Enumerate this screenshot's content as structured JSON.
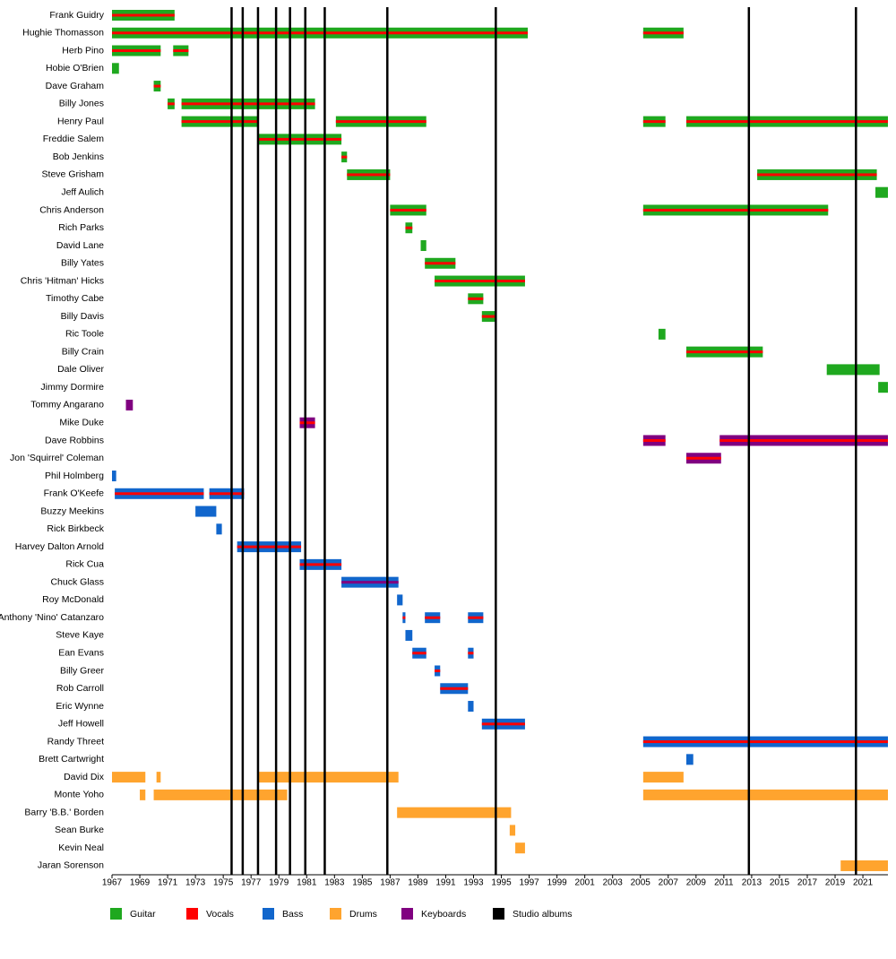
{
  "chart_data": {
    "type": "timeline",
    "xlim": [
      1967,
      2022.8
    ],
    "xticks": [
      1967,
      1969,
      1971,
      1973,
      1975,
      1977,
      1979,
      1981,
      1983,
      1985,
      1987,
      1989,
      1991,
      1993,
      1995,
      1997,
      1999,
      2001,
      2003,
      2005,
      2007,
      2009,
      2011,
      2013,
      2015,
      2017,
      2019,
      2021
    ],
    "series": [
      {
        "name": "Guitar",
        "color": "#1fa81f"
      },
      {
        "name": "Vocals",
        "color": "#ff0000"
      },
      {
        "name": "Bass",
        "color": "#1166cc"
      },
      {
        "name": "Drums",
        "color": "#ffa42e"
      },
      {
        "name": "Keyboards",
        "color": "#800080"
      },
      {
        "name": "Studio albums",
        "color": "#000000",
        "values": [
          1975.6,
          1976.4,
          1977.5,
          1978.8,
          1979.8,
          1980.9,
          1982.3,
          1986.8,
          1994.6,
          2012.8,
          2020.5
        ]
      }
    ],
    "members": [
      {
        "name": "Frank Guidry",
        "roles": [
          "Guitar",
          "Vocals"
        ],
        "periods": [
          {
            "start": 1967,
            "end": 1971.5
          }
        ]
      },
      {
        "name": "Hughie Thomasson",
        "roles": [
          "Guitar",
          "Vocals"
        ],
        "periods": [
          {
            "start": 1967,
            "end": 1996.9
          },
          {
            "start": 2005.2,
            "end": 2008.1
          }
        ]
      },
      {
        "name": "Herb Pino",
        "roles": [
          "Guitar",
          "Vocals"
        ],
        "periods": [
          {
            "start": 1967,
            "end": 1970.5
          },
          {
            "start": 1971.4,
            "end": 1972.5
          }
        ]
      },
      {
        "name": "Hobie O'Brien",
        "roles": [
          "Guitar"
        ],
        "periods": [
          {
            "start": 1967,
            "end": 1967.5
          }
        ]
      },
      {
        "name": "Dave Graham",
        "roles": [
          "Guitar",
          "Vocals"
        ],
        "periods": [
          {
            "start": 1970.0,
            "end": 1970.5
          }
        ]
      },
      {
        "name": "Billy Jones",
        "roles": [
          "Guitar",
          "Vocals"
        ],
        "periods": [
          {
            "start": 1971.0,
            "end": 1971.5
          },
          {
            "start": 1972.0,
            "end": 1981.6
          }
        ]
      },
      {
        "name": "Henry Paul",
        "roles": [
          "Guitar",
          "Vocals"
        ],
        "periods": [
          {
            "start": 1972.0,
            "end": 1977.5
          },
          {
            "start": 1983.1,
            "end": 1989.6
          },
          {
            "start": 2005.2,
            "end": 2006.8
          },
          {
            "start": 2008.3,
            "end": 2022.8
          }
        ]
      },
      {
        "name": "Freddie Salem",
        "roles": [
          "Guitar",
          "Vocals"
        ],
        "periods": [
          {
            "start": 1977.5,
            "end": 1983.5
          }
        ]
      },
      {
        "name": "Bob Jenkins",
        "roles": [
          "Guitar",
          "Vocals"
        ],
        "periods": [
          {
            "start": 1983.5,
            "end": 1983.9
          }
        ]
      },
      {
        "name": "Steve Grisham",
        "roles": [
          "Guitar",
          "Vocals"
        ],
        "periods": [
          {
            "start": 1983.9,
            "end": 1987.0
          },
          {
            "start": 2013.4,
            "end": 2022.0
          }
        ]
      },
      {
        "name": "Jeff Aulich",
        "roles": [
          "Guitar"
        ],
        "periods": [
          {
            "start": 2021.9,
            "end": 2022.8
          }
        ]
      },
      {
        "name": "Chris Anderson",
        "roles": [
          "Guitar",
          "Vocals"
        ],
        "periods": [
          {
            "start": 1987.0,
            "end": 1989.6
          },
          {
            "start": 2005.2,
            "end": 2018.5
          }
        ]
      },
      {
        "name": "Rich Parks",
        "roles": [
          "Guitar",
          "Vocals"
        ],
        "periods": [
          {
            "start": 1988.1,
            "end": 1988.6
          }
        ]
      },
      {
        "name": "David Lane",
        "roles": [
          "Guitar"
        ],
        "periods": [
          {
            "start": 1989.2,
            "end": 1989.6
          }
        ]
      },
      {
        "name": "Billy Yates",
        "roles": [
          "Guitar",
          "Vocals"
        ],
        "periods": [
          {
            "start": 1989.5,
            "end": 1991.7
          }
        ]
      },
      {
        "name": "Chris 'Hitman' Hicks",
        "roles": [
          "Guitar",
          "Vocals"
        ],
        "periods": [
          {
            "start": 1990.2,
            "end": 1996.7
          }
        ]
      },
      {
        "name": "Timothy Cabe",
        "roles": [
          "Guitar",
          "Vocals"
        ],
        "periods": [
          {
            "start": 1992.6,
            "end": 1993.7
          }
        ]
      },
      {
        "name": "Billy Davis",
        "roles": [
          "Guitar",
          "Vocals"
        ],
        "periods": [
          {
            "start": 1993.6,
            "end": 1994.6
          }
        ]
      },
      {
        "name": "Ric Toole",
        "roles": [
          "Guitar"
        ],
        "periods": [
          {
            "start": 2006.3,
            "end": 2006.8
          }
        ]
      },
      {
        "name": "Billy Crain",
        "roles": [
          "Guitar",
          "Vocals"
        ],
        "periods": [
          {
            "start": 2008.3,
            "end": 2013.8
          }
        ]
      },
      {
        "name": "Dale Oliver",
        "roles": [
          "Guitar"
        ],
        "periods": [
          {
            "start": 2018.4,
            "end": 2022.2
          }
        ]
      },
      {
        "name": "Jimmy Dormire",
        "roles": [
          "Guitar"
        ],
        "periods": [
          {
            "start": 2022.1,
            "end": 2022.8
          }
        ]
      },
      {
        "name": "Tommy Angarano",
        "roles": [
          "Keyboards"
        ],
        "periods": [
          {
            "start": 1968.0,
            "end": 1968.5
          }
        ]
      },
      {
        "name": "Mike Duke",
        "roles": [
          "Keyboards",
          "Vocals"
        ],
        "periods": [
          {
            "start": 1980.5,
            "end": 1981.6
          }
        ]
      },
      {
        "name": "Dave Robbins",
        "roles": [
          "Keyboards",
          "Vocals"
        ],
        "periods": [
          {
            "start": 2005.2,
            "end": 2006.8
          },
          {
            "start": 2010.7,
            "end": 2022.8
          }
        ]
      },
      {
        "name": "Jon 'Squirrel' Coleman",
        "roles": [
          "Keyboards",
          "Vocals"
        ],
        "periods": [
          {
            "start": 2008.3,
            "end": 2010.8
          }
        ]
      },
      {
        "name": "Phil Holmberg",
        "roles": [
          "Bass"
        ],
        "periods": [
          {
            "start": 1967,
            "end": 1967.3
          }
        ]
      },
      {
        "name": "Frank O'Keefe",
        "roles": [
          "Bass",
          "Vocals"
        ],
        "periods": [
          {
            "start": 1967.2,
            "end": 1973.6
          },
          {
            "start": 1974.0,
            "end": 1976.5
          }
        ]
      },
      {
        "name": "Buzzy Meekins",
        "roles": [
          "Bass"
        ],
        "periods": [
          {
            "start": 1973.0,
            "end": 1974.5
          }
        ]
      },
      {
        "name": "Rick Birkbeck",
        "roles": [
          "Bass"
        ],
        "periods": [
          {
            "start": 1974.5,
            "end": 1974.9
          }
        ]
      },
      {
        "name": "Harvey Dalton Arnold",
        "roles": [
          "Bass",
          "Vocals"
        ],
        "periods": [
          {
            "start": 1976.0,
            "end": 1980.6
          }
        ]
      },
      {
        "name": "Rick Cua",
        "roles": [
          "Bass",
          "Vocals"
        ],
        "periods": [
          {
            "start": 1980.5,
            "end": 1983.5
          }
        ]
      },
      {
        "name": "Chuck Glass",
        "roles": [
          "Bass",
          "Keyboards"
        ],
        "periods": [
          {
            "start": 1983.5,
            "end": 1987.6
          }
        ]
      },
      {
        "name": "Roy McDonald",
        "roles": [
          "Bass"
        ],
        "periods": [
          {
            "start": 1987.5,
            "end": 1987.9
          }
        ]
      },
      {
        "name": "Anthony 'Nino' Catanzaro",
        "roles": [
          "Bass",
          "Vocals"
        ],
        "periods": [
          {
            "start": 1987.9,
            "end": 1988.1
          },
          {
            "start": 1989.5,
            "end": 1990.6
          },
          {
            "start": 1992.6,
            "end": 1993.7
          }
        ]
      },
      {
        "name": "Steve Kaye",
        "roles": [
          "Bass"
        ],
        "periods": [
          {
            "start": 1988.1,
            "end": 1988.6
          }
        ]
      },
      {
        "name": "Ean Evans",
        "roles": [
          "Bass",
          "Vocals"
        ],
        "periods": [
          {
            "start": 1988.6,
            "end": 1989.6
          },
          {
            "start": 1992.6,
            "end": 1993.0
          }
        ]
      },
      {
        "name": "Billy Greer",
        "roles": [
          "Bass",
          "Vocals"
        ],
        "periods": [
          {
            "start": 1990.2,
            "end": 1990.6
          }
        ]
      },
      {
        "name": "Rob Carroll",
        "roles": [
          "Bass",
          "Vocals"
        ],
        "periods": [
          {
            "start": 1990.6,
            "end": 1992.6
          }
        ]
      },
      {
        "name": "Eric Wynne",
        "roles": [
          "Bass"
        ],
        "periods": [
          {
            "start": 1992.6,
            "end": 1993.0
          }
        ]
      },
      {
        "name": "Jeff Howell",
        "roles": [
          "Bass",
          "Vocals"
        ],
        "periods": [
          {
            "start": 1993.6,
            "end": 1996.7
          }
        ]
      },
      {
        "name": "Randy Threet",
        "roles": [
          "Bass",
          "Vocals"
        ],
        "periods": [
          {
            "start": 2005.2,
            "end": 2022.8
          }
        ]
      },
      {
        "name": "Brett Cartwright",
        "roles": [
          "Bass"
        ],
        "periods": [
          {
            "start": 2008.3,
            "end": 2008.8
          }
        ]
      },
      {
        "name": "David Dix",
        "roles": [
          "Drums"
        ],
        "periods": [
          {
            "start": 1967,
            "end": 1969.4
          },
          {
            "start": 1970.2,
            "end": 1970.5
          },
          {
            "start": 1977.5,
            "end": 1987.6
          },
          {
            "start": 2005.2,
            "end": 2008.1
          }
        ]
      },
      {
        "name": "Monte Yoho",
        "roles": [
          "Drums"
        ],
        "periods": [
          {
            "start": 1969.0,
            "end": 1969.4
          },
          {
            "start": 1970.0,
            "end": 1979.6
          },
          {
            "start": 2005.2,
            "end": 2022.8
          }
        ]
      },
      {
        "name": "Barry 'B.B.' Borden",
        "roles": [
          "Drums"
        ],
        "periods": [
          {
            "start": 1987.5,
            "end": 1995.7
          }
        ]
      },
      {
        "name": "Sean Burke",
        "roles": [
          "Drums"
        ],
        "periods": [
          {
            "start": 1995.6,
            "end": 1996.0
          }
        ]
      },
      {
        "name": "Kevin Neal",
        "roles": [
          "Drums"
        ],
        "periods": [
          {
            "start": 1996.0,
            "end": 1996.7
          }
        ]
      },
      {
        "name": "Jaran Sorenson",
        "roles": [
          "Drums"
        ],
        "periods": [
          {
            "start": 2019.4,
            "end": 2022.8
          }
        ]
      }
    ]
  }
}
